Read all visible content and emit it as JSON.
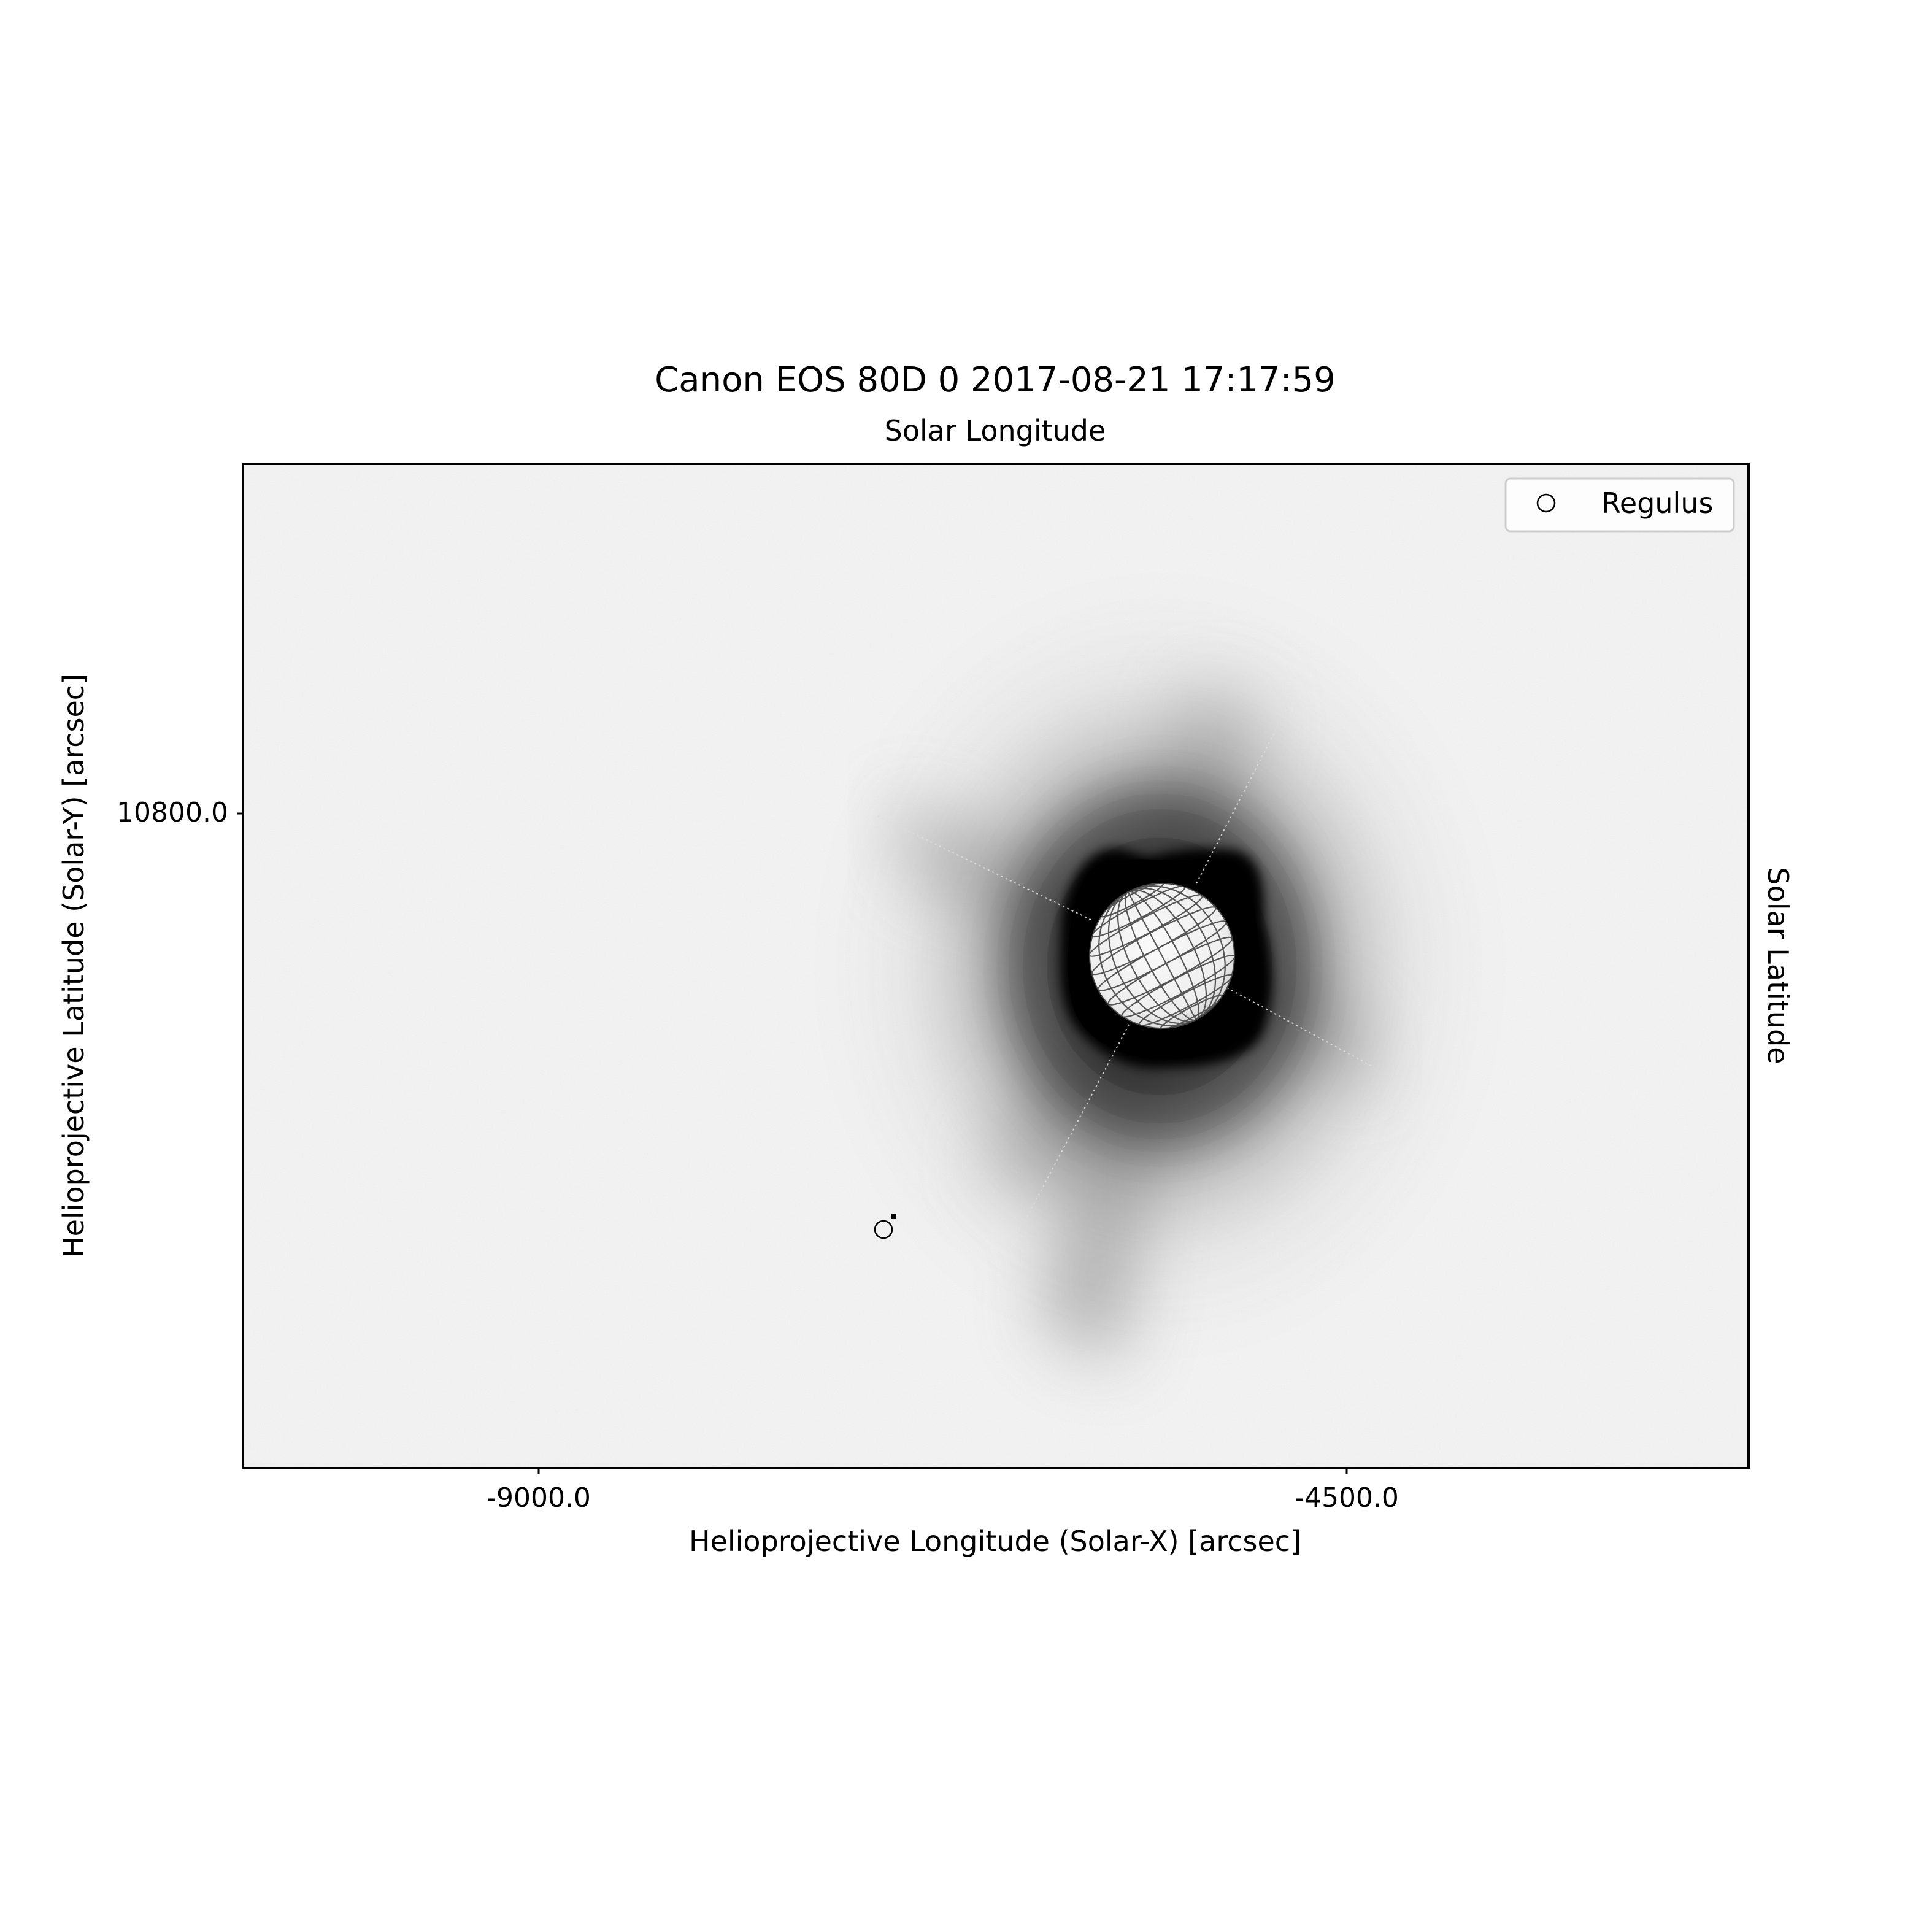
{
  "title": "Canon EOS 80D 0  2017-08-21 17:17:59",
  "top_axis_label": "Solar Longitude",
  "right_axis_label": "Solar Latitude",
  "xlabel": "Helioprojective Longitude (Solar-X) [arcsec]",
  "ylabel": "Helioprojective Latitude (Solar-Y) [arcsec]",
  "x_ticks": [
    {
      "value": -9000,
      "label": "-9000.0"
    },
    {
      "value": -4500,
      "label": "-4500.0"
    }
  ],
  "y_ticks": [
    {
      "value": 10800,
      "label": "10800.0"
    }
  ],
  "legend": {
    "placement": "top-right",
    "entries": [
      {
        "label": "Regulus",
        "marker": "open-circle"
      }
    ]
  },
  "colors": {
    "corona": "#000000",
    "background": "#f8f8f8",
    "grid_lines": "#555555"
  }
}
